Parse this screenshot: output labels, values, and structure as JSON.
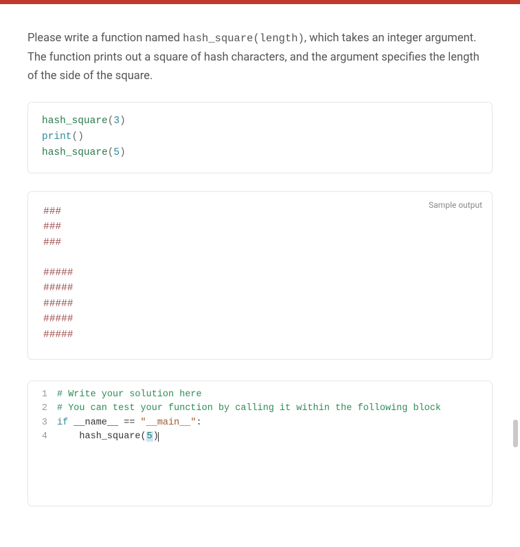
{
  "colors": {
    "accent": "#c0392b",
    "border": "#e6e6e6",
    "text": "#555",
    "comment": "#2e8b57",
    "keyword": "#2e8b99",
    "string": "#a05a2c",
    "output_text": "#9b4a4a",
    "gutter": "#999"
  },
  "description": {
    "pre": "Please write a function named ",
    "code": "hash_square(length)",
    "post": ", which takes an integer argument. The function prints out a square of hash characters, and the argument specifies the length of the side of the square."
  },
  "example_code": {
    "lines": [
      {
        "fn": "hash_square",
        "arg": "3"
      },
      {
        "fn": "print",
        "arg": ""
      },
      {
        "fn": "hash_square",
        "arg": "5"
      }
    ]
  },
  "sample_output": {
    "label": "Sample output",
    "block1": [
      "###",
      "###",
      "###"
    ],
    "block2": [
      "#####",
      "#####",
      "#####",
      "#####",
      "#####"
    ]
  },
  "editor": {
    "lines": [
      {
        "n": "1",
        "segments": [
          {
            "cls": "code-comment",
            "t": "# Write your solution here"
          }
        ]
      },
      {
        "n": "2",
        "segments": [
          {
            "cls": "code-comment",
            "t": "# You can test your function by calling it within the following block"
          }
        ]
      },
      {
        "n": "3",
        "segments": [
          {
            "cls": "code-kw",
            "t": "if"
          },
          {
            "cls": "code-id",
            "t": " __name__ "
          },
          {
            "cls": "code-id",
            "t": "== "
          },
          {
            "cls": "code-str",
            "t": "\"__main__\""
          },
          {
            "cls": "code-id",
            "t": ":"
          }
        ]
      },
      {
        "n": "4",
        "segments": [
          {
            "cls": "code-id",
            "t": "    "
          },
          {
            "cls": "code-fn",
            "t": "hash_square"
          },
          {
            "cls": "code-id",
            "t": "("
          },
          {
            "cls": "code-num sel",
            "t": "5"
          },
          {
            "cls": "code-id",
            "t": ")"
          }
        ]
      }
    ]
  }
}
